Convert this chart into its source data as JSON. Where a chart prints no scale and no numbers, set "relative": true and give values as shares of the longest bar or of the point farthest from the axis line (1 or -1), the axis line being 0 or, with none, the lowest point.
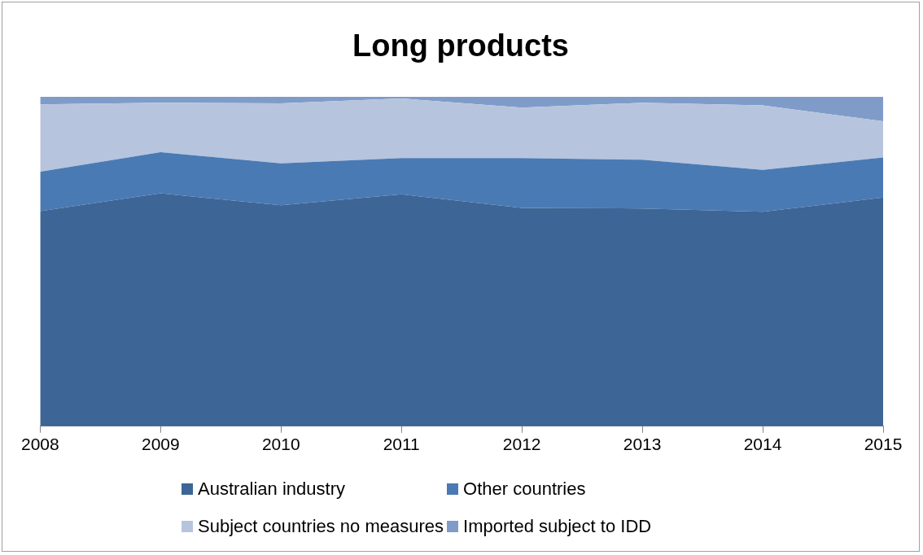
{
  "chart_data": {
    "type": "area",
    "title": "Long products",
    "categories": [
      "2008",
      "2009",
      "2010",
      "2011",
      "2012",
      "2013",
      "2014",
      "2015"
    ],
    "relative": true,
    "stacked": true,
    "legend": "bottom",
    "series": [
      {
        "name": "Australian industry",
        "color": "#3d6595",
        "values": [
          0.653,
          0.707,
          0.671,
          0.704,
          0.663,
          0.661,
          0.651,
          0.694
        ]
      },
      {
        "name": "Other countries",
        "color": "#4a7ab4",
        "values": [
          0.12,
          0.125,
          0.127,
          0.11,
          0.151,
          0.148,
          0.127,
          0.122
        ]
      },
      {
        "name": "Subject countries no measures",
        "color": "#b7c4de",
        "values": [
          0.204,
          0.15,
          0.182,
          0.181,
          0.153,
          0.173,
          0.196,
          0.11
        ]
      },
      {
        "name": "Imported subject to IDD",
        "color": "#7f9cc9",
        "values": [
          0.023,
          0.018,
          0.02,
          0.005,
          0.033,
          0.018,
          0.026,
          0.074
        ]
      }
    ]
  }
}
